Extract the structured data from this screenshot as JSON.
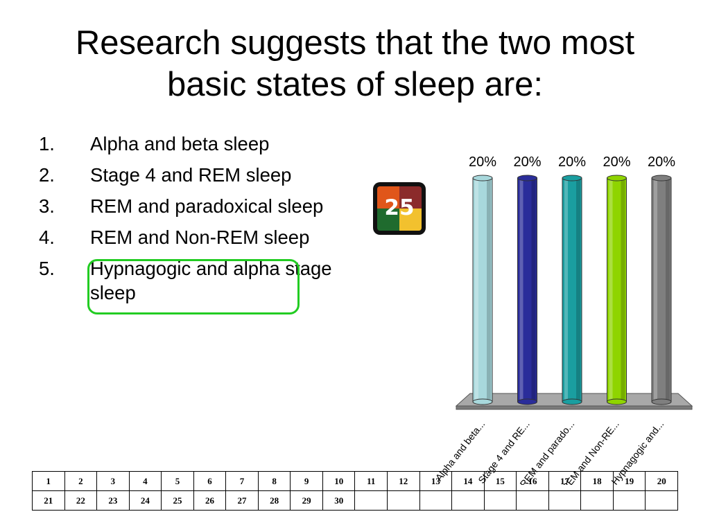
{
  "slide": {
    "title": "Research suggests that the two most basic states of sleep are:",
    "options": [
      {
        "num": "1.",
        "text": "Alpha and beta sleep"
      },
      {
        "num": "2.",
        "text": "Stage 4 and REM sleep"
      },
      {
        "num": "3.",
        "text": "REM and paradoxical sleep"
      },
      {
        "num": "4.",
        "text": "REM and Non-REM sleep"
      },
      {
        "num": "5.",
        "text": "Hypnagogic and alpha stage sleep"
      }
    ],
    "highlighted_option": "4.",
    "highlight_color": "#22cc22"
  },
  "timer": {
    "value": "25",
    "colors": [
      "#e0561a",
      "#8b2b2b",
      "#1f6b2e",
      "#f2c12e"
    ]
  },
  "chart_data": {
    "type": "bar",
    "style": "3d-cylinder",
    "categories": [
      "Alpha and beta...",
      "Stage 4 and RE...",
      "REM and parado...",
      "REM and Non-RE...",
      "Hypnagogic and..."
    ],
    "values": [
      20,
      20,
      20,
      20,
      20
    ],
    "value_labels": [
      "20%",
      "20%",
      "20%",
      "20%",
      "20%"
    ],
    "colors": [
      "#a8d8dc",
      "#2a2d9a",
      "#1a9ea0",
      "#8fd400",
      "#7f7f7f"
    ],
    "ylim": [
      0,
      20
    ],
    "grid": false
  },
  "response_grid": {
    "rows": [
      [
        "1",
        "2",
        "3",
        "4",
        "5",
        "6",
        "7",
        "8",
        "9",
        "10",
        "11",
        "12",
        "13",
        "14",
        "15",
        "16",
        "17",
        "18",
        "19",
        "20"
      ],
      [
        "21",
        "22",
        "23",
        "24",
        "25",
        "26",
        "27",
        "28",
        "29",
        "30",
        "",
        "",
        "",
        "",
        "",
        "",
        "",
        "",
        "",
        ""
      ]
    ]
  }
}
